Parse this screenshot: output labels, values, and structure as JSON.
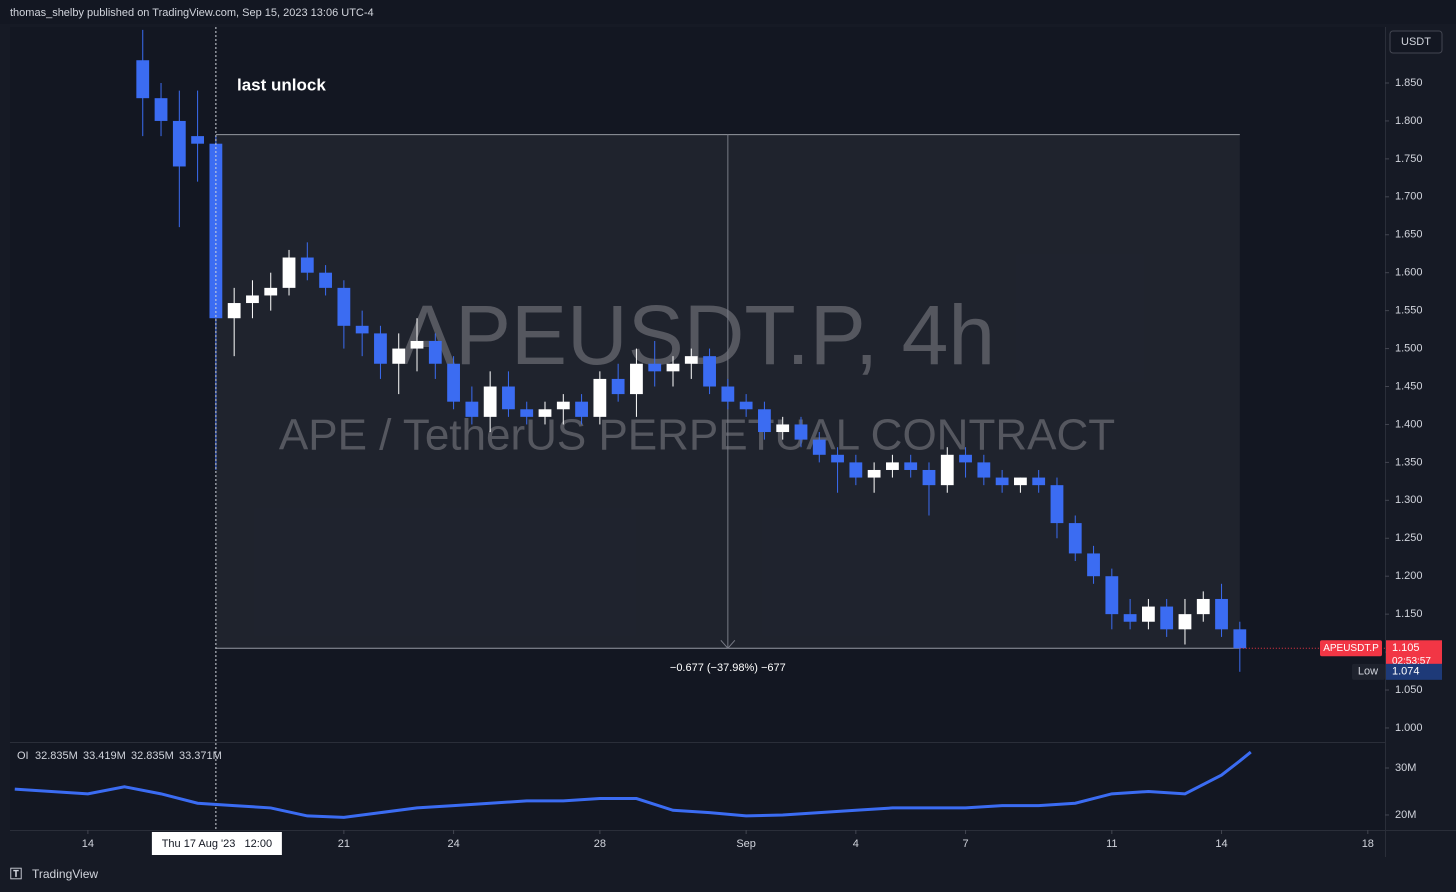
{
  "header": {
    "publisher": "thomas_shelby published on TradingView.com, Sep 15, 2023 13:06 UTC-4"
  },
  "chart_data": {
    "type": "candlestick",
    "title": "APEUSDT.P, 4h",
    "subtitle": "APE / TetherUS PERPETUAL CONTRACT",
    "annotation": "last unlock",
    "currency": "USDT",
    "up_color": "#ffffff",
    "down_color": "#3b6cf2",
    "x": [
      15.5,
      16,
      16.5,
      17,
      17.5,
      18,
      18.5,
      19,
      19.5,
      20,
      20.5,
      21,
      21.5,
      22,
      22.5,
      23,
      23.5,
      24,
      24.5,
      25,
      25.5,
      26,
      26.5,
      27,
      27.5,
      28,
      28.5,
      29,
      29.5,
      30,
      30.5,
      31,
      31.5,
      32,
      32.5,
      33,
      33.5,
      34,
      34.5,
      35,
      35.5,
      36,
      36.5,
      37,
      37.5,
      38,
      38.5,
      39,
      39.5,
      40,
      40.5,
      41,
      41.5,
      42,
      42.5,
      43,
      43.5,
      44,
      44.5,
      45,
      45.5
    ],
    "open": [
      1.88,
      1.83,
      1.8,
      1.78,
      1.77,
      1.54,
      1.56,
      1.57,
      1.58,
      1.62,
      1.6,
      1.58,
      1.53,
      1.52,
      1.48,
      1.5,
      1.51,
      1.48,
      1.43,
      1.41,
      1.45,
      1.42,
      1.41,
      1.42,
      1.43,
      1.41,
      1.46,
      1.44,
      1.48,
      1.47,
      1.48,
      1.49,
      1.45,
      1.43,
      1.42,
      1.39,
      1.4,
      1.38,
      1.36,
      1.35,
      1.33,
      1.34,
      1.35,
      1.34,
      1.32,
      1.36,
      1.35,
      1.33,
      1.32,
      1.33,
      1.32,
      1.27,
      1.23,
      1.2,
      1.15,
      1.14,
      1.16,
      1.13,
      1.15,
      1.17,
      1.13
    ],
    "high": [
      1.92,
      1.85,
      1.84,
      1.84,
      1.78,
      1.58,
      1.59,
      1.6,
      1.63,
      1.64,
      1.61,
      1.59,
      1.55,
      1.53,
      1.52,
      1.54,
      1.52,
      1.49,
      1.45,
      1.47,
      1.47,
      1.43,
      1.43,
      1.44,
      1.44,
      1.47,
      1.48,
      1.5,
      1.51,
      1.49,
      1.5,
      1.5,
      1.46,
      1.44,
      1.43,
      1.41,
      1.41,
      1.39,
      1.37,
      1.36,
      1.35,
      1.36,
      1.36,
      1.35,
      1.37,
      1.37,
      1.36,
      1.34,
      1.33,
      1.34,
      1.33,
      1.28,
      1.24,
      1.21,
      1.17,
      1.17,
      1.17,
      1.17,
      1.18,
      1.19,
      1.14
    ],
    "low": [
      1.78,
      1.78,
      1.66,
      1.72,
      1.34,
      1.49,
      1.54,
      1.55,
      1.57,
      1.59,
      1.57,
      1.5,
      1.49,
      1.46,
      1.44,
      1.47,
      1.46,
      1.42,
      1.4,
      1.39,
      1.41,
      1.4,
      1.4,
      1.4,
      1.4,
      1.4,
      1.43,
      1.41,
      1.45,
      1.45,
      1.46,
      1.44,
      1.42,
      1.41,
      1.38,
      1.38,
      1.37,
      1.35,
      1.31,
      1.32,
      1.31,
      1.33,
      1.33,
      1.28,
      1.31,
      1.33,
      1.32,
      1.31,
      1.31,
      1.31,
      1.25,
      1.22,
      1.19,
      1.13,
      1.13,
      1.13,
      1.12,
      1.11,
      1.14,
      1.12,
      1.074
    ],
    "close": [
      1.83,
      1.8,
      1.74,
      1.77,
      1.54,
      1.56,
      1.57,
      1.58,
      1.62,
      1.6,
      1.58,
      1.53,
      1.52,
      1.48,
      1.5,
      1.51,
      1.48,
      1.43,
      1.41,
      1.45,
      1.42,
      1.41,
      1.42,
      1.43,
      1.41,
      1.46,
      1.44,
      1.48,
      1.47,
      1.48,
      1.49,
      1.45,
      1.43,
      1.42,
      1.39,
      1.4,
      1.38,
      1.36,
      1.35,
      1.33,
      1.34,
      1.35,
      1.34,
      1.32,
      1.36,
      1.35,
      1.33,
      1.32,
      1.33,
      1.32,
      1.27,
      1.23,
      1.2,
      1.15,
      1.14,
      1.16,
      1.13,
      1.15,
      1.17,
      1.13,
      1.105
    ],
    "xlim": [
      11.87,
      49.47
    ],
    "xticks": [
      {
        "value": 14,
        "label": "14"
      },
      {
        "value": 21,
        "label": "21"
      },
      {
        "value": 24,
        "label": "24"
      },
      {
        "value": 28,
        "label": "28"
      },
      {
        "value": 32,
        "label": "Sep"
      },
      {
        "value": 35,
        "label": "4"
      },
      {
        "value": 38,
        "label": "7"
      },
      {
        "value": 42,
        "label": "11"
      },
      {
        "value": 45,
        "label": "14"
      },
      {
        "value": 49,
        "label": "18"
      }
    ],
    "ylim": [
      0.9815,
      1.9238
    ],
    "yticks": [
      {
        "value": 1.0,
        "label": "1.000"
      },
      {
        "value": 1.05,
        "label": "1.050"
      },
      {
        "value": 1.1,
        "label": "1.100"
      },
      {
        "value": 1.15,
        "label": "1.150"
      },
      {
        "value": 1.2,
        "label": "1.200"
      },
      {
        "value": 1.25,
        "label": "1.250"
      },
      {
        "value": 1.3,
        "label": "1.300"
      },
      {
        "value": 1.35,
        "label": "1.350"
      },
      {
        "value": 1.4,
        "label": "1.400"
      },
      {
        "value": 1.45,
        "label": "1.450"
      },
      {
        "value": 1.5,
        "label": "1.500"
      },
      {
        "value": 1.55,
        "label": "1.550"
      },
      {
        "value": 1.6,
        "label": "1.600"
      },
      {
        "value": 1.65,
        "label": "1.650"
      },
      {
        "value": 1.7,
        "label": "1.700"
      },
      {
        "value": 1.75,
        "label": "1.750"
      },
      {
        "value": 1.8,
        "label": "1.800"
      },
      {
        "value": 1.85,
        "label": "1.850"
      }
    ],
    "last_price": {
      "symbol": "APEUSDT.P",
      "value": 1.105,
      "label": "1.105",
      "countdown": "02:53:57"
    },
    "low_marker": {
      "name": "Low",
      "value": 1.074,
      "label": "1.074"
    },
    "crosshair": {
      "x": 17.5,
      "label": "Thu 17 Aug '23   12:00"
    },
    "measure": {
      "x_start": 17.5,
      "x_end": 45.5,
      "top": 1.782,
      "bottom": 1.105,
      "label": "−0.677 (−37.98%) −677"
    },
    "oi": {
      "name": "OI",
      "legend": [
        "32.835M",
        "33.419M",
        "32.835M",
        "33.371M"
      ],
      "color": "#3b6cf2",
      "x": [
        12,
        13,
        14,
        15,
        16,
        17,
        18,
        19,
        20,
        21,
        22,
        23,
        24,
        25,
        26,
        27,
        28,
        29,
        30,
        31,
        32,
        33,
        34,
        35,
        36,
        37,
        38,
        39,
        40,
        41,
        42,
        43,
        44,
        45,
        45.5,
        45.8
      ],
      "values": [
        25.5,
        25,
        24.5,
        26,
        24.5,
        22.5,
        22,
        21.5,
        19.8,
        19.5,
        20.5,
        21.5,
        22,
        22.5,
        23,
        23,
        23.5,
        23.5,
        21,
        20.5,
        19.8,
        20,
        20.5,
        21,
        21.5,
        21.5,
        21.5,
        22,
        22,
        22.5,
        24.5,
        25,
        24.5,
        28.5,
        31.5,
        33.4
      ],
      "ylim": [
        16.8,
        34.9
      ],
      "yticks": [
        {
          "value": 20,
          "label": "20M"
        },
        {
          "value": 30,
          "label": "30M"
        }
      ]
    }
  },
  "footer": {
    "brand": "TradingView"
  }
}
